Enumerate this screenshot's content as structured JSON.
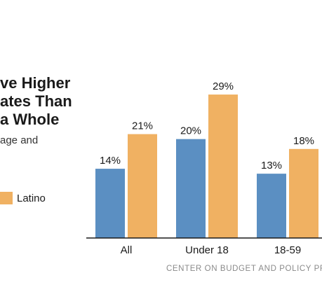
{
  "title_lines": [
    "ve Higher",
    "ates Than",
    "a Whole"
  ],
  "subtitle": "age and",
  "legend": [
    {
      "label": "Latino",
      "color": "#f0b162"
    }
  ],
  "source": "CENTER ON BUDGET AND POLICY PR",
  "chart_data": {
    "type": "bar",
    "categories": [
      "All",
      "Under 18",
      "18-59"
    ],
    "series": [
      {
        "values": [
          14,
          20,
          13
        ],
        "labels": [
          "14%",
          "20%",
          "13%"
        ],
        "color": "#5b8fc2"
      },
      {
        "name": "Latino",
        "values": [
          21,
          29,
          18
        ],
        "labels": [
          "21%",
          "29%",
          "18%"
        ],
        "color": "#f0b162"
      }
    ],
    "ylim": [
      0,
      30
    ],
    "grid": false,
    "legend_position": "left"
  }
}
